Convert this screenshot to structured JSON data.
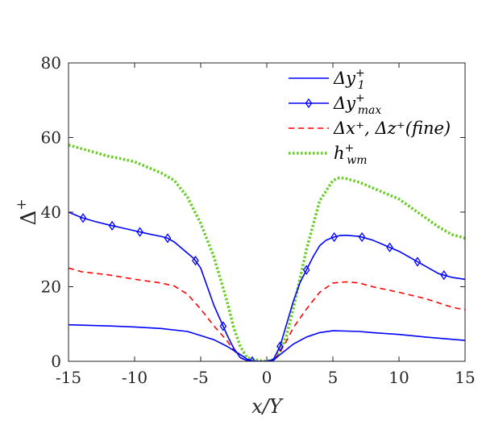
{
  "chart_data": {
    "type": "line",
    "xlabel": "x/Y",
    "ylabel": "Δ",
    "ylabel_sup": "+",
    "xlim": [
      -15,
      15
    ],
    "ylim": [
      0,
      80
    ],
    "xticks": [
      -15,
      -10,
      -5,
      0,
      5,
      10,
      15
    ],
    "yticks": [
      0,
      20,
      40,
      60,
      80
    ],
    "grid": false,
    "legend_position": "top-right",
    "series": [
      {
        "name": "Δy1+",
        "label": {
          "base": "Δy",
          "sup": "+",
          "sub": "1"
        },
        "color": "#0000ff",
        "style": "solid",
        "marker": "none",
        "x": [
          -15,
          -12,
          -10,
          -8,
          -6,
          -4,
          -3,
          -2,
          -1.5,
          -1,
          -0.5,
          0,
          0.5,
          1,
          1.5,
          2,
          3,
          4,
          5,
          6,
          7,
          8,
          10,
          12,
          15
        ],
        "y": [
          9.8,
          9.5,
          9.2,
          8.8,
          8,
          5.8,
          4,
          1.8,
          0.6,
          0,
          0,
          0,
          0.3,
          1.8,
          3.2,
          4.6,
          6.5,
          7.7,
          8.2,
          8.1,
          8,
          7.7,
          7.2,
          6.5,
          5.6
        ]
      },
      {
        "name": "Δymax+",
        "label": {
          "base": "Δy",
          "sup": "+",
          "sub": "max"
        },
        "color": "#0000ff",
        "style": "solid",
        "marker": "diamond",
        "marker_x": [
          -13.9,
          -11.7,
          -9.6,
          -7.5,
          -5.4,
          -3.3,
          -1.1,
          1,
          3,
          5.1,
          7.2,
          9.3,
          11.4,
          13.4
        ],
        "x": [
          -15,
          -14,
          -13,
          -12,
          -11,
          -10,
          -9,
          -8,
          -7.5,
          -7,
          -6,
          -5.5,
          -5,
          -4.5,
          -4,
          -3.5,
          -3,
          -2.5,
          -2,
          -1.5,
          -1,
          -0.5,
          0,
          0.5,
          1,
          1.5,
          2,
          2.5,
          3,
          3.5,
          4,
          4.5,
          5,
          5.5,
          6,
          7,
          8,
          9,
          10,
          11,
          12,
          13,
          14,
          15
        ],
        "y": [
          40,
          38.5,
          37.5,
          36.6,
          35.8,
          35,
          34.2,
          33.5,
          33,
          32,
          29,
          27.5,
          25,
          20,
          15,
          11,
          7,
          3.5,
          1,
          0.2,
          0,
          0,
          0,
          0.5,
          4,
          10,
          16,
          21,
          24.5,
          28,
          31,
          32.5,
          33.2,
          33.7,
          33.8,
          33.5,
          32.5,
          31,
          29.5,
          27.5,
          25.5,
          23.5,
          22.5,
          22
        ]
      },
      {
        "name": "Δx+, Δz+(fine)",
        "label": {
          "text": "Δx⁺, Δz⁺(fine)"
        },
        "color": "#ff0000",
        "style": "dashed",
        "marker": "none",
        "x": [
          -15,
          -14,
          -12,
          -10,
          -8,
          -7,
          -6,
          -5,
          -4,
          -3,
          -2.5,
          -2,
          -1.5,
          -1,
          -0.5,
          0,
          0.5,
          1,
          1.5,
          2,
          3,
          4,
          5,
          6,
          7,
          8,
          10,
          12,
          14,
          15
        ],
        "y": [
          25,
          24,
          23.2,
          22,
          21,
          20.2,
          18,
          14,
          9.5,
          5.5,
          3,
          1,
          0,
          0,
          0,
          0,
          0,
          2.5,
          5.5,
          9,
          14,
          18.5,
          21,
          21.3,
          21,
          20,
          18.5,
          16.8,
          14.5,
          13.8
        ]
      },
      {
        "name": "hwm+",
        "label": {
          "base": "h",
          "sup": "+",
          "sub": "wm"
        },
        "color": "#66cc22",
        "style": "dotted",
        "marker": "none",
        "x": [
          -15,
          -14,
          -13,
          -12,
          -11,
          -10,
          -9,
          -8,
          -7,
          -6,
          -5,
          -4,
          -3,
          -2.5,
          -2,
          -1.5,
          -1,
          -0.5,
          0,
          0.5,
          1,
          1.5,
          2,
          3,
          4,
          5,
          5.5,
          6,
          7,
          8,
          9,
          10,
          11,
          12,
          13,
          14,
          15
        ],
        "y": [
          58,
          57,
          56,
          55,
          54.3,
          53.5,
          52,
          50.5,
          48.5,
          44,
          37,
          28,
          16,
          9,
          4,
          1,
          0.5,
          0.2,
          0,
          0.5,
          2.5,
          7,
          14,
          30,
          43,
          48.5,
          49.2,
          49,
          48,
          46.5,
          45,
          43.5,
          41,
          38.5,
          36,
          34,
          33
        ]
      }
    ]
  }
}
